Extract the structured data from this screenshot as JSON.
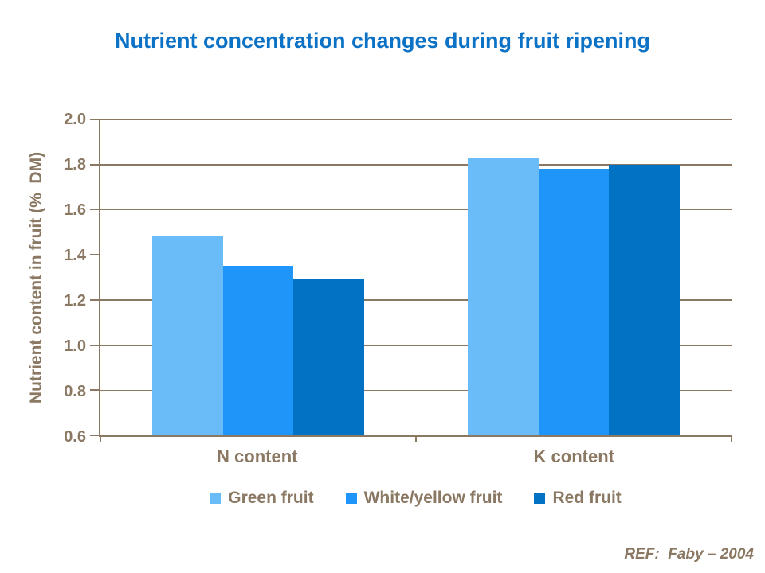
{
  "chart_data": {
    "type": "bar",
    "title": "Nutrient concentration changes during fruit ripening",
    "categories": [
      "N content",
      "K content"
    ],
    "series": [
      {
        "name": "Green fruit",
        "color": "#6ABCF8",
        "values": [
          1.48,
          1.83
        ]
      },
      {
        "name": "White/yellow fruit",
        "color": "#1E96F9",
        "values": [
          1.35,
          1.78
        ]
      },
      {
        "name": "Red fruit",
        "color": "#0272C4",
        "values": [
          1.29,
          1.8
        ]
      }
    ],
    "xlabel": "",
    "ylabel": "Nutrient content in fruit (%  DM)",
    "ylim": [
      0.6,
      2.0
    ],
    "yticks": [
      0.6,
      0.8,
      1.0,
      1.2,
      1.4,
      1.6,
      1.8,
      2.0
    ],
    "ytick_format": "one-decimal",
    "grid": true,
    "legend_position": "bottom"
  },
  "footer": {
    "ref": "REF:  Faby – 2004"
  },
  "colors": {
    "title": "#0C72C6",
    "axis_text": "#8A7862",
    "axis_line": "#8A7862",
    "grid_line": "#8A7862",
    "background": "#FFFFFF"
  }
}
